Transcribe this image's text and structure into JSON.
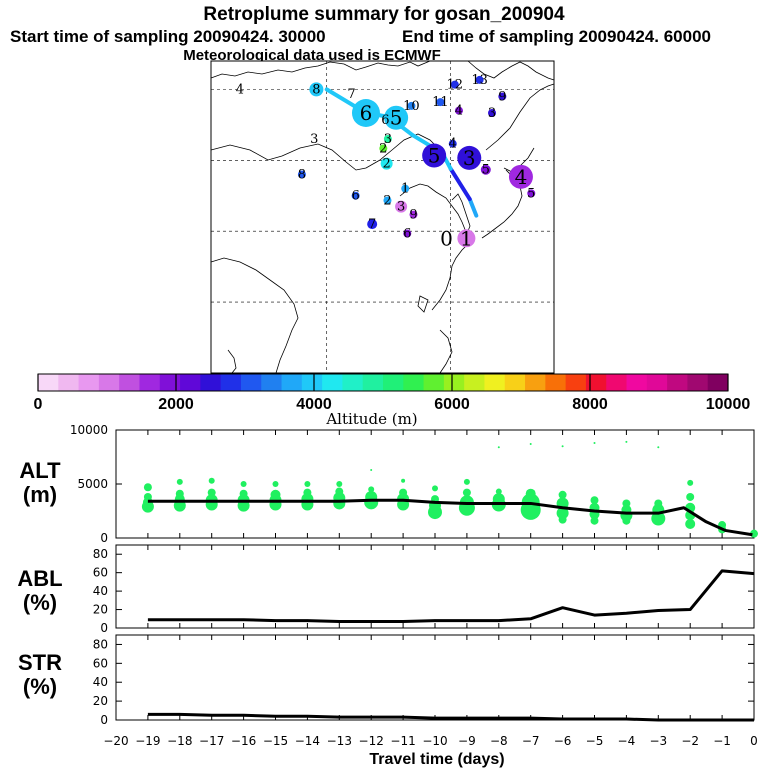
{
  "header": {
    "title": "Retroplume summary for gosan_200904",
    "start_label": "Start time of sampling 20090424. 30000",
    "end_label": "End time of sampling 20090424. 60000",
    "met_label": "Meteorological data used is ECMWF"
  },
  "colorbar": {
    "title": "Altitude (m)",
    "ticks": [
      "0",
      "2000",
      "4000",
      "6000",
      "8000",
      "10000"
    ],
    "range": [
      0,
      10000
    ],
    "colors": [
      "#f8d8f8",
      "#f0b8f0",
      "#e898f0",
      "#d878e8",
      "#c050e0",
      "#a028e0",
      "#8010d8",
      "#6008d8",
      "#3010d8",
      "#2030e8",
      "#2058f0",
      "#2080f0",
      "#20a8f8",
      "#20c8f8",
      "#20e8f0",
      "#20f0c8",
      "#20f0a0",
      "#20f078",
      "#30f050",
      "#60f030",
      "#98f020",
      "#c8f020",
      "#f0f020",
      "#f8d018",
      "#f8a010",
      "#f87008",
      "#f84010",
      "#f01030",
      "#f00870",
      "#f008a0",
      "#e00898",
      "#c00880",
      "#a00870",
      "#800060"
    ]
  },
  "map": {
    "trajectory": [
      {
        "day": "0",
        "lon": 126.2,
        "lat": 33.3,
        "color": "#c050e0"
      },
      {
        "day": "1",
        "lon": 124.6,
        "lat": 36.8,
        "color": "#20a8f8"
      },
      {
        "day": "2",
        "lon": 120.0,
        "lat": 43.2,
        "color": "#2020e8"
      },
      {
        "day": "3",
        "lon": 118.0,
        "lat": 46.5,
        "color": "#20c8f8"
      },
      {
        "day": "4",
        "lon": 110.8,
        "lat": 50.3,
        "color": "#20c8f8"
      },
      {
        "day": "5",
        "lon": 105.0,
        "lat": 54.2,
        "color": "#20c8f8"
      },
      {
        "day": "6",
        "lon": 99.5,
        "lat": 55.0,
        "color": "#20c8f8"
      },
      {
        "day": "8",
        "lon": 90.0,
        "lat": 60.0,
        "color": "#20c8f8"
      }
    ],
    "labels": [
      {
        "text": "6",
        "lon": 99.5,
        "lat": 55.0,
        "size": "big",
        "color": "#20c8f8",
        "r": 14
      },
      {
        "text": "5",
        "lon": 106.8,
        "lat": 54.0,
        "size": "big",
        "color": "#20c8f8",
        "r": 12
      },
      {
        "text": "6",
        "lon": 104.2,
        "lat": 53.5,
        "size": "small",
        "color": "",
        "r": 0
      },
      {
        "text": "7",
        "lon": 96.0,
        "lat": 59.0,
        "size": "small",
        "color": "",
        "r": 0
      },
      {
        "text": "8",
        "lon": 87.5,
        "lat": 60.0,
        "size": "small",
        "color": "#20c8f8",
        "r": 7
      },
      {
        "text": "4",
        "lon": 69.0,
        "lat": 60.0,
        "size": "small",
        "color": "",
        "r": 0
      },
      {
        "text": "3",
        "lon": 87.0,
        "lat": 49.5,
        "size": "small",
        "color": "",
        "r": 0
      },
      {
        "text": "3",
        "lon": 104.8,
        "lat": 49.5,
        "size": "small",
        "color": "#20f0a0",
        "r": 4
      },
      {
        "text": "10",
        "lon": 110.5,
        "lat": 56.5,
        "size": "small",
        "color": "#2080f0",
        "r": 4
      },
      {
        "text": "11",
        "lon": 117.5,
        "lat": 57.3,
        "size": "small",
        "color": "#2058f0",
        "r": 4
      },
      {
        "text": "12",
        "lon": 121.0,
        "lat": 61.0,
        "size": "small",
        "color": "#2030e8",
        "r": 4
      },
      {
        "text": "13",
        "lon": 127.0,
        "lat": 62.0,
        "size": "small",
        "color": "#2030e8",
        "r": 4
      },
      {
        "text": "9",
        "lon": 132.5,
        "lat": 58.5,
        "size": "small",
        "color": "#3010d8",
        "r": 4
      },
      {
        "text": "4",
        "lon": 122.0,
        "lat": 55.5,
        "size": "small",
        "color": "#8010d8",
        "r": 4
      },
      {
        "text": "3",
        "lon": 130.0,
        "lat": 55.0,
        "size": "small",
        "color": "#3010d8",
        "r": 4
      },
      {
        "text": "4",
        "lon": 120.5,
        "lat": 48.5,
        "size": "small",
        "color": "#2030e8",
        "r": 4
      },
      {
        "text": "5",
        "lon": 116.0,
        "lat": 46.0,
        "size": "big",
        "color": "#3010d8",
        "r": 12
      },
      {
        "text": "3",
        "lon": 124.5,
        "lat": 45.5,
        "size": "big",
        "color": "#3010d8",
        "r": 12
      },
      {
        "text": "4",
        "lon": 137.0,
        "lat": 41.5,
        "size": "big",
        "color": "#a028e0",
        "r": 12
      },
      {
        "text": "5",
        "lon": 128.5,
        "lat": 43.0,
        "size": "small",
        "color": "#8010d8",
        "r": 5
      },
      {
        "text": "2",
        "lon": 103.7,
        "lat": 47.5,
        "size": "small",
        "color": "#60f030",
        "r": 4
      },
      {
        "text": "2",
        "lon": 104.5,
        "lat": 44.3,
        "size": "small",
        "color": "#20e8f0",
        "r": 6
      },
      {
        "text": "8",
        "lon": 84.0,
        "lat": 42.0,
        "size": "small",
        "color": "#2058f0",
        "r": 4
      },
      {
        "text": "6",
        "lon": 97.0,
        "lat": 37.5,
        "size": "small",
        "color": "#2058f0",
        "r": 4
      },
      {
        "text": "1",
        "lon": 109.0,
        "lat": 39.0,
        "size": "small",
        "color": "#20a8f8",
        "r": 4
      },
      {
        "text": "2",
        "lon": 104.7,
        "lat": 36.5,
        "size": "small",
        "color": "#20a8f8",
        "r": 4
      },
      {
        "text": "3",
        "lon": 108.0,
        "lat": 35.2,
        "size": "small",
        "color": "#d878e8",
        "r": 6
      },
      {
        "text": "9",
        "lon": 111.0,
        "lat": 33.5,
        "size": "small",
        "color": "#a028e0",
        "r": 4
      },
      {
        "text": "7",
        "lon": 101.0,
        "lat": 31.5,
        "size": "small",
        "color": "#2020e8",
        "r": 5
      },
      {
        "text": "6",
        "lon": 109.5,
        "lat": 29.5,
        "size": "small",
        "color": "#8010d8",
        "r": 4
      },
      {
        "text": "5",
        "lon": 139.5,
        "lat": 38.0,
        "size": "small",
        "color": "#8010d8",
        "r": 4
      },
      {
        "text": "0",
        "lon": 119.0,
        "lat": 28.5,
        "size": "big",
        "color": "",
        "r": 0
      },
      {
        "text": "1",
        "lon": 123.8,
        "lat": 28.5,
        "size": "big",
        "color": "#d878e8",
        "r": 9
      }
    ]
  },
  "chart_data": [
    {
      "type": "line",
      "panel": "ALT",
      "ylabel": "ALT\n(m)",
      "xlabel": "Travel time (days)",
      "xlim": [
        -20,
        0
      ],
      "ylim": [
        0,
        10000
      ],
      "yticks": [
        0,
        5000,
        10000
      ],
      "xticks": [
        -20,
        -19,
        -18,
        -17,
        -16,
        -15,
        -14,
        -13,
        -12,
        -11,
        -10,
        -9,
        -8,
        -7,
        -6,
        -5,
        -4,
        -3,
        -2,
        -1,
        0
      ],
      "series": [
        {
          "name": "mean altitude",
          "x": [
            -19,
            -18,
            -17,
            -16,
            -15,
            -14,
            -13,
            -12,
            -11,
            -10,
            -9,
            -8,
            -7,
            -6,
            -5,
            -4,
            -3,
            -2.2,
            -1.5,
            -0.9,
            -0.05
          ],
          "y": [
            3400,
            3400,
            3400,
            3400,
            3400,
            3400,
            3400,
            3500,
            3500,
            3300,
            3200,
            3200,
            3200,
            2800,
            2500,
            2300,
            2300,
            2800,
            1500,
            700,
            300
          ]
        }
      ],
      "clusters": [
        {
          "x": -19,
          "y": [
            4700,
            3800,
            3300,
            2900
          ],
          "size": [
            4,
            4,
            5,
            6
          ]
        },
        {
          "x": -18,
          "y": [
            5200,
            4100,
            3600,
            3000
          ],
          "size": [
            3,
            4,
            5,
            6
          ]
        },
        {
          "x": -17,
          "y": [
            5300,
            4200,
            3500,
            3100
          ],
          "size": [
            3,
            4,
            6,
            6
          ]
        },
        {
          "x": -16,
          "y": [
            5000,
            4100,
            3500,
            3000
          ],
          "size": [
            3,
            4,
            6,
            6
          ]
        },
        {
          "x": -15,
          "y": [
            5000,
            4000,
            3500,
            3100
          ],
          "size": [
            3,
            5,
            6,
            6
          ]
        },
        {
          "x": -14,
          "y": [
            5000,
            4200,
            3600,
            3100
          ],
          "size": [
            3,
            4,
            6,
            6
          ]
        },
        {
          "x": -13,
          "y": [
            5000,
            4300,
            3700,
            3200
          ],
          "size": [
            3,
            4,
            6,
            6
          ]
        },
        {
          "x": -12,
          "y": [
            6300,
            4500,
            3800,
            3300
          ],
          "size": [
            1,
            3,
            6,
            7
          ]
        },
        {
          "x": -11,
          "y": [
            5300,
            4200,
            3600,
            3100
          ],
          "size": [
            2,
            4,
            6,
            6
          ]
        },
        {
          "x": -10,
          "y": [
            4600,
            3600,
            3000,
            2400
          ],
          "size": [
            3,
            4,
            6,
            7
          ]
        },
        {
          "x": -9,
          "y": [
            5200,
            4200,
            3300,
            2800
          ],
          "size": [
            3,
            4,
            7,
            8
          ]
        },
        {
          "x": -8,
          "y": [
            8400,
            4300,
            3600,
            3100
          ],
          "size": [
            1,
            3,
            6,
            7
          ]
        },
        {
          "x": -7,
          "y": [
            8700,
            4100,
            3300,
            2600
          ],
          "size": [
            1,
            5,
            9,
            10
          ]
        },
        {
          "x": -6,
          "y": [
            8500,
            4000,
            3200,
            2300,
            1700
          ],
          "size": [
            1,
            4,
            6,
            6,
            4
          ]
        },
        {
          "x": -5,
          "y": [
            8800,
            3500,
            2800,
            2200,
            1600
          ],
          "size": [
            1,
            4,
            5,
            5,
            4
          ]
        },
        {
          "x": -4,
          "y": [
            8900,
            3200,
            2600,
            2100,
            1600
          ],
          "size": [
            1,
            4,
            5,
            6,
            4
          ]
        },
        {
          "x": -3,
          "y": [
            8400,
            3200,
            2600,
            1800
          ],
          "size": [
            1,
            4,
            6,
            7
          ]
        },
        {
          "x": -2,
          "y": [
            5100,
            3800,
            2800,
            2100,
            1300
          ],
          "size": [
            3,
            4,
            5,
            5,
            5
          ]
        },
        {
          "x": -1,
          "y": [
            1200,
            800
          ],
          "size": [
            4,
            4
          ]
        },
        {
          "x": 0,
          "y": [
            400
          ],
          "size": [
            4
          ]
        }
      ]
    },
    {
      "type": "line",
      "panel": "ABL",
      "ylabel": "ABL\n(%)",
      "xlim": [
        -20,
        0
      ],
      "ylim": [
        0,
        90
      ],
      "yticks": [
        0,
        20,
        40,
        60,
        80
      ],
      "series": [
        {
          "name": "fraction in ABL",
          "x": [
            -19,
            -18,
            -17,
            -16,
            -15,
            -14,
            -13,
            -12,
            -11,
            -10,
            -9,
            -8,
            -7,
            -6,
            -5,
            -4,
            -3,
            -2,
            -1,
            0
          ],
          "y": [
            9,
            9,
            9,
            9,
            8,
            8,
            7,
            7,
            7,
            8,
            8,
            8,
            10,
            22,
            14,
            16,
            19,
            20,
            62,
            59
          ]
        }
      ]
    },
    {
      "type": "line",
      "panel": "STR",
      "ylabel": "STR\n(%)",
      "xlim": [
        -20,
        0
      ],
      "ylim": [
        0,
        90
      ],
      "yticks": [
        0,
        20,
        40,
        60,
        80
      ],
      "series": [
        {
          "name": "fraction in stratosphere",
          "x": [
            -19,
            -18,
            -17,
            -16,
            -15,
            -14,
            -13,
            -12,
            -11,
            -10,
            -9,
            -8,
            -7,
            -6,
            -5,
            -4,
            -3,
            -2,
            -1,
            0
          ],
          "y": [
            6,
            6,
            5,
            5,
            4,
            4,
            3,
            3,
            3,
            2,
            2,
            2,
            2,
            1,
            1,
            1,
            0,
            0,
            0,
            0
          ]
        }
      ]
    }
  ],
  "panels": {
    "alt_title_line1": "ALT",
    "alt_title_line2": "(m)",
    "abl_title_line1": "ABL",
    "abl_title_line2": "(%)",
    "str_title_line1": "STR",
    "str_title_line2": "(%)",
    "xlabel": "Travel time (days)",
    "xtick_labels": [
      "−20",
      "−19",
      "−18",
      "−17",
      "−16",
      "−15",
      "−14",
      "−13",
      "−12",
      "−11",
      "−10",
      "−9",
      "−8",
      "−7",
      "−6",
      "−5",
      "−4",
      "−3",
      "−2",
      "−1",
      "0"
    ]
  }
}
